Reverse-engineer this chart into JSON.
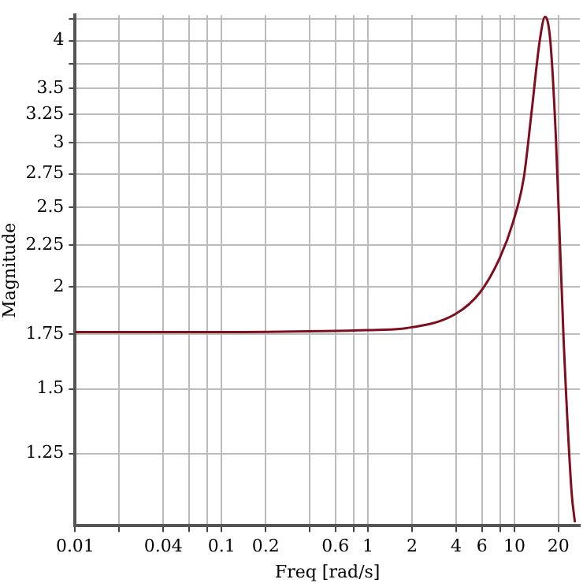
{
  "chart_data": {
    "type": "line",
    "xlabel": "Freq [rad/s]",
    "ylabel": "Magnitude",
    "log": "xy",
    "grid": true,
    "legend": false,
    "marker": "none",
    "line_style": "solid",
    "x": [
      0.01,
      0.1,
      0.5,
      1,
      1.84,
      3.92,
      5.85,
      7.96,
      9.8,
      11.6,
      13.1,
      14.9,
      16.2,
      17.6,
      19.2,
      21.7,
      24.6,
      25.9
    ],
    "series": [
      {
        "color": "#7f0f1f",
        "values": [
          1.76,
          1.76,
          1.765,
          1.77,
          1.78,
          1.85,
          1.97,
          2.17,
          2.4,
          2.72,
          3.27,
          4.0,
          4.28,
          4.0,
          3.05,
          1.72,
          1.12,
          1.03
        ]
      }
    ],
    "xlim": [
      0.01,
      28
    ],
    "xticks": [
      0.01,
      {
        "value": 0.02,
        "label": null
      },
      0.04,
      {
        "value": 0.06,
        "label": null
      },
      {
        "value": 0.08,
        "label": null
      },
      0.1,
      0.2,
      {
        "value": 0.4,
        "label": null
      },
      0.6,
      {
        "value": 0.8,
        "label": null
      },
      1,
      2,
      4,
      6,
      {
        "value": 8,
        "label": null
      },
      10,
      20
    ],
    "ylim": [
      1.02,
      4.3
    ],
    "yticks": [
      1.25,
      1.5,
      1.75,
      2,
      2.25,
      2.5,
      2.75,
      3,
      3.25,
      3.5,
      {
        "value": 3.75,
        "label": null
      },
      4,
      {
        "value": 4.25,
        "label": null
      }
    ]
  }
}
